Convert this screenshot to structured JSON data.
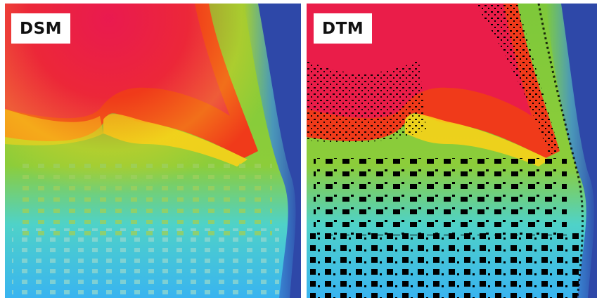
{
  "panels": [
    {
      "id": "dsm",
      "label": "DSM",
      "colors": {
        "peak": "#e8145a",
        "high": "#f03a1a",
        "mid": "#f7d21a",
        "low": "#7ec83a",
        "lower": "#4fd2c8",
        "lowest": "#39b4f0",
        "edge": "#2e48a8"
      }
    },
    {
      "id": "dtm",
      "label": "DTM",
      "colors": {
        "peak": "#e8145a",
        "high": "#f03a1a",
        "mid": "#f7d21a",
        "low": "#7ec83a",
        "lower": "#4fd2c8",
        "lowest": "#39b4f0",
        "edge": "#2e48a8",
        "voids": "#000000"
      }
    }
  ]
}
